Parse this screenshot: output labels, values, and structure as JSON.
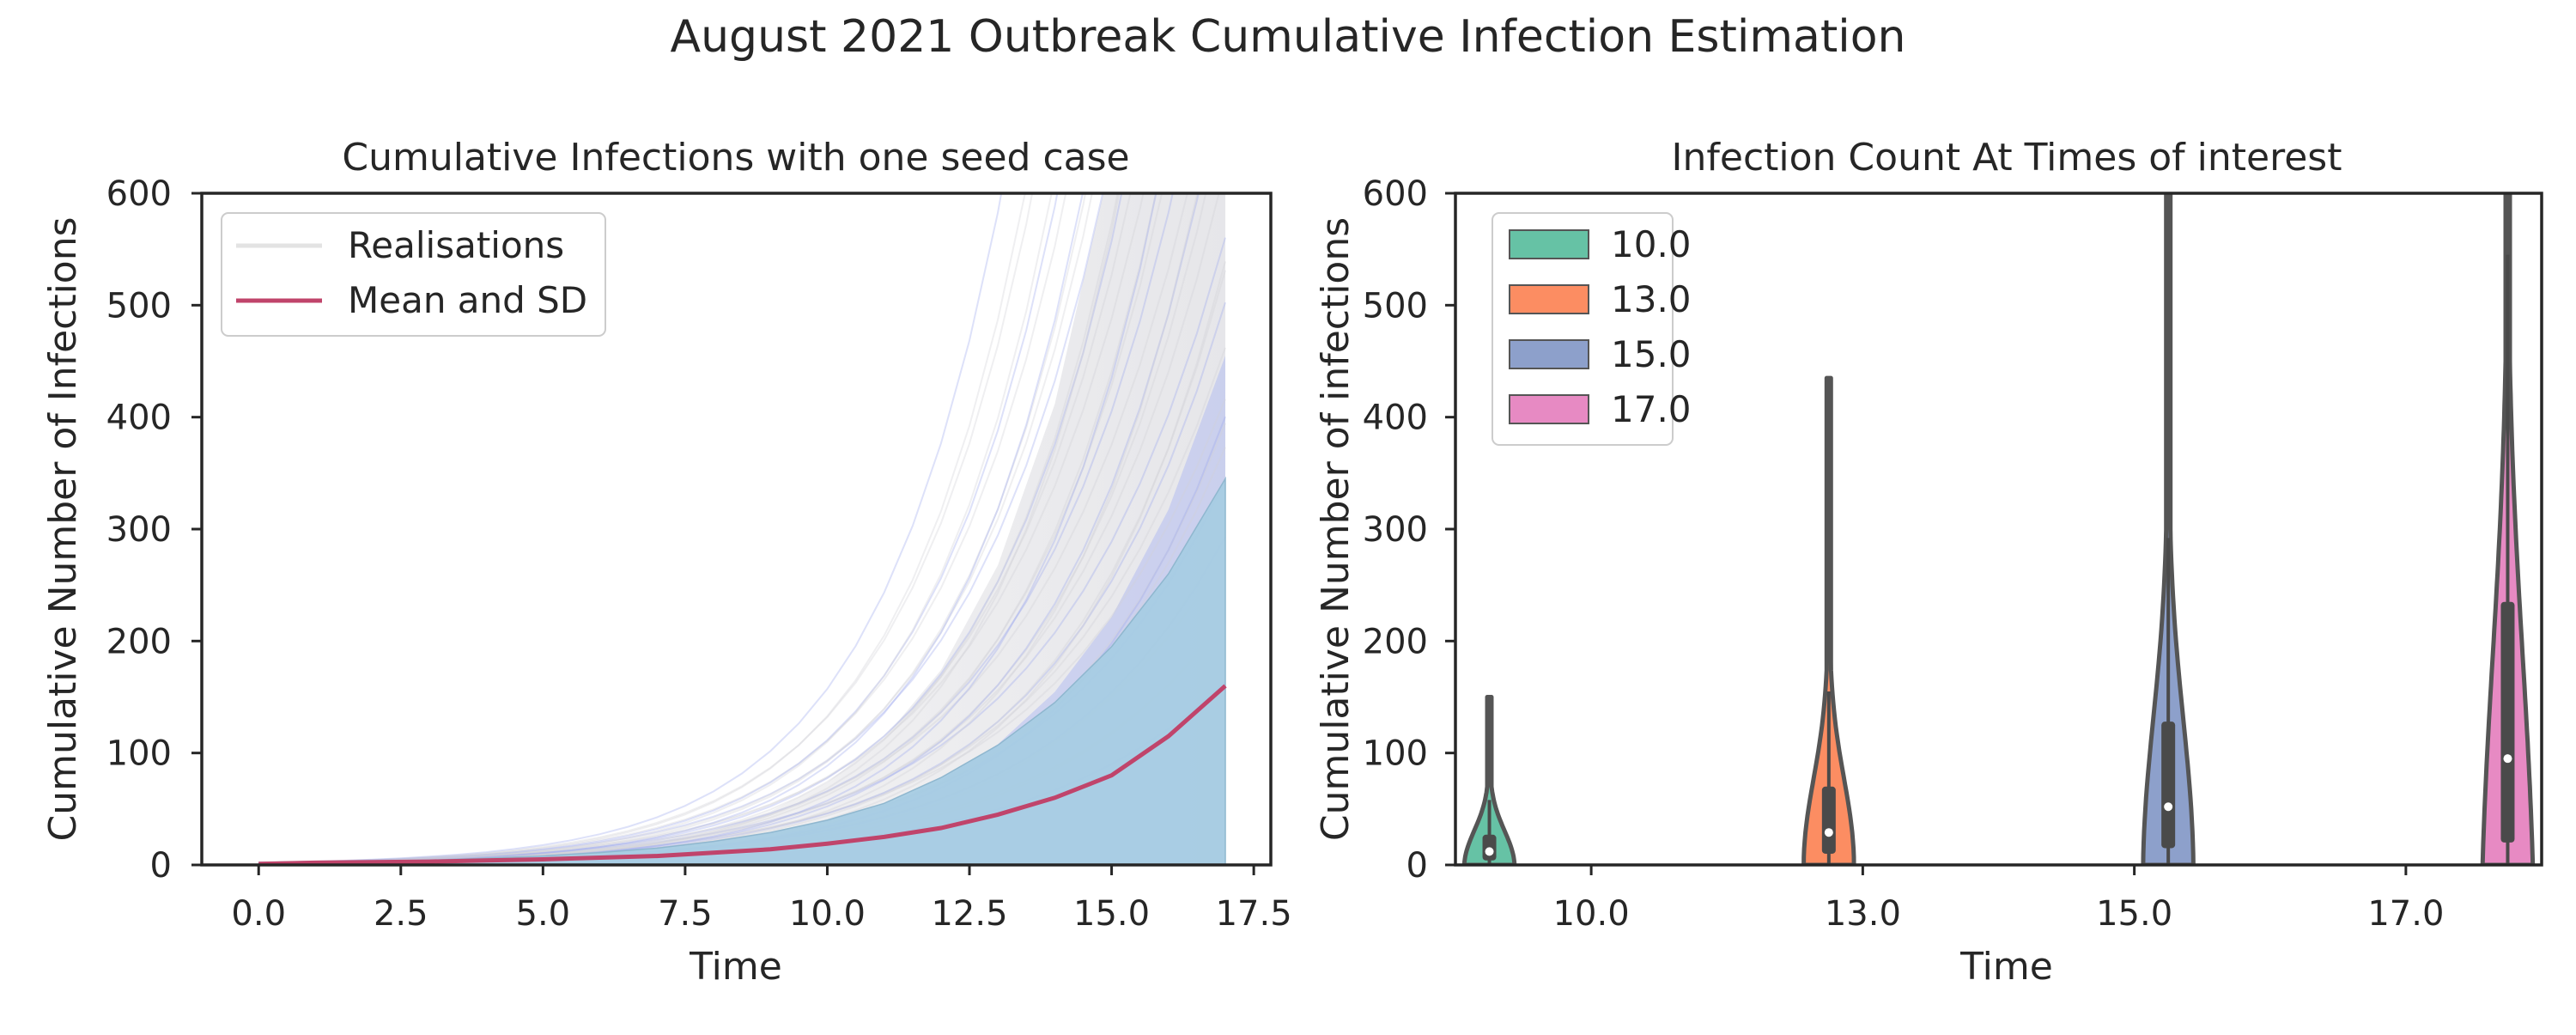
{
  "figure": {
    "suptitle": "August 2021 Outbreak Cumulative Infection Estimation"
  },
  "colors": {
    "mean_line": "#c0446b",
    "sd_band": "#a6cce3",
    "realisation_blue": "#a9b4f2",
    "realisation_grey": "#d9d9d9",
    "violin_outline": "#555555",
    "axis": "#262626",
    "median_dot": "#ffffff"
  },
  "chart_data": [
    {
      "type": "line",
      "title": "Cumulative Infections with one seed case",
      "xlabel": "Time",
      "ylabel": "Cumulative Number of Infections",
      "xlim": [
        -1,
        17.8
      ],
      "ylim": [
        0,
        600
      ],
      "xticks": [
        0,
        2.5,
        5,
        7.5,
        10,
        12.5,
        15,
        17.5
      ],
      "xtick_labels": [
        "0.0",
        "2.5",
        "5.0",
        "7.5",
        "10.0",
        "12.5",
        "15.0",
        "17.5"
      ],
      "yticks": [
        0,
        100,
        200,
        300,
        400,
        500,
        600
      ],
      "ytick_labels": [
        "0",
        "100",
        "200",
        "300",
        "400",
        "500",
        "600"
      ],
      "legend": {
        "placement": "upper-left",
        "entries": [
          {
            "label": "Realisations",
            "color": "#dcdcdc"
          },
          {
            "label": "Mean and SD",
            "color": "#c0446b"
          }
        ]
      },
      "series": [
        {
          "name": "Mean and SD",
          "x": [
            0,
            1,
            2,
            3,
            4,
            5,
            6,
            7,
            8,
            9,
            10,
            11,
            12,
            13,
            14,
            15,
            16,
            17
          ],
          "mean": [
            1,
            2,
            2.5,
            3,
            4,
            5,
            6.5,
            8,
            11,
            14,
            19,
            25,
            33,
            45,
            60,
            80,
            115,
            160
          ],
          "sd_upper": [
            1.2,
            2.5,
            3.2,
            4.2,
            6,
            8,
            11,
            15,
            21,
            29,
            40,
            55,
            78,
            107,
            145,
            195,
            260,
            345
          ]
        }
      ]
    },
    {
      "type": "violin",
      "title": "Infection Count At Times of interest",
      "xlabel": "Time",
      "ylabel": "Cumulative Number of infections",
      "ylim": [
        0,
        600
      ],
      "categories": [
        "10.0",
        "13.0",
        "15.0",
        "17.0"
      ],
      "yticks": [
        0,
        100,
        200,
        300,
        400,
        500,
        600
      ],
      "ytick_labels": [
        "0",
        "100",
        "200",
        "300",
        "400",
        "500",
        "600"
      ],
      "legend": {
        "placement": "upper-left",
        "entries": [
          {
            "label": "10.0",
            "color": "#66c2a5"
          },
          {
            "label": "13.0",
            "color": "#fc8d62"
          },
          {
            "label": "15.0",
            "color": "#8da0cb"
          },
          {
            "label": "17.0",
            "color": "#e78ac3"
          }
        ]
      },
      "series": [
        {
          "name": "10.0",
          "color": "#66c2a5",
          "min": 0,
          "q1": 4,
          "median": 12,
          "q3": 27,
          "max": 150,
          "whisker_high": 58
        },
        {
          "name": "13.0",
          "color": "#fc8d62",
          "min": 0,
          "q1": 10,
          "median": 29,
          "q3": 70,
          "max": 435,
          "whisker_high": 155
        },
        {
          "name": "15.0",
          "color": "#8da0cb",
          "min": 0,
          "q1": 15,
          "median": 52,
          "q3": 128,
          "max": 600,
          "whisker_high": 292
        },
        {
          "name": "17.0",
          "color": "#e78ac3",
          "min": 0,
          "q1": 20,
          "median": 95,
          "q3": 235,
          "max": 600,
          "whisker_high": 545
        }
      ]
    }
  ]
}
